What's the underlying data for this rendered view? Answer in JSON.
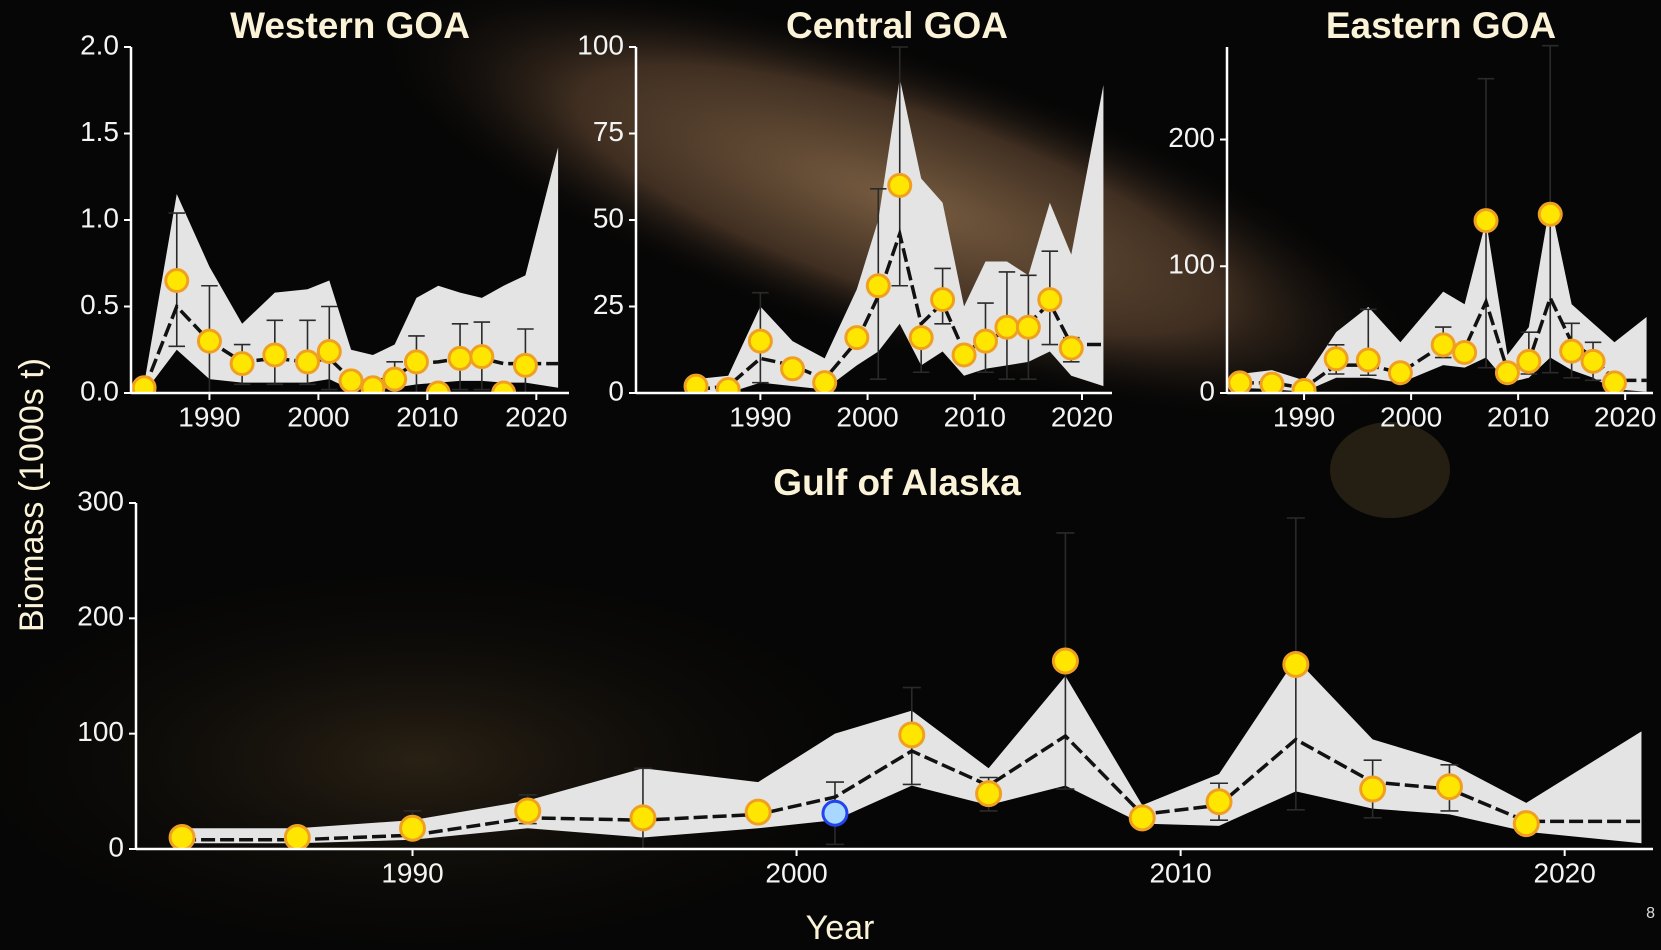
{
  "page_number": "8",
  "chart_data": [
    {
      "type": "line",
      "title": "Western GOA",
      "xlim": [
        1982.8,
        2023
      ],
      "ylim": [
        0,
        2.0
      ],
      "xticks": [
        1990,
        2000,
        2010,
        2020
      ],
      "yticks": [
        {
          "value": 0,
          "label": "0.0"
        },
        0.5,
        {
          "value": 1,
          "label": "1.0"
        },
        1.5,
        {
          "value": 2,
          "label": "2.0"
        }
      ],
      "survey": {
        "color": "#ffe600",
        "x": [
          1984,
          1987,
          1990,
          1993,
          1996,
          1999,
          2001,
          2003,
          2005,
          2007,
          2009,
          2011,
          2013,
          2015,
          2017,
          2019
        ],
        "values": [
          0.03,
          0.65,
          0.3,
          0.17,
          0.22,
          0.18,
          0.24,
          0.07,
          0.03,
          0.08,
          0.18,
          0.0,
          0.2,
          0.21,
          0.0,
          0.16
        ],
        "lower": [
          null,
          0.27,
          0.0,
          0.05,
          0.05,
          0.05,
          0.02,
          null,
          null,
          0.0,
          0.0,
          null,
          0.02,
          0.02,
          null,
          0.0
        ],
        "upper": [
          null,
          1.04,
          0.62,
          0.28,
          0.42,
          0.42,
          0.5,
          null,
          null,
          0.18,
          0.33,
          null,
          0.4,
          0.41,
          null,
          0.37
        ]
      },
      "model": {
        "color": "#111111",
        "band_color": "#e4e4e4",
        "x": [
          1984,
          1987,
          1990,
          1993,
          1996,
          1999,
          2001,
          2003,
          2005,
          2007,
          2009,
          2011,
          2013,
          2015,
          2017,
          2019,
          2022
        ],
        "values": [
          0.02,
          0.5,
          0.3,
          0.18,
          0.2,
          0.18,
          0.2,
          0.08,
          0.06,
          0.1,
          0.17,
          0.18,
          0.2,
          0.2,
          0.17,
          0.17,
          0.17
        ],
        "lower": [
          0.0,
          0.25,
          0.08,
          0.06,
          0.06,
          0.06,
          0.08,
          0.02,
          0.02,
          0.03,
          0.05,
          0.06,
          0.07,
          0.07,
          0.06,
          0.06,
          0.03
        ],
        "upper": [
          0.05,
          1.15,
          0.73,
          0.4,
          0.58,
          0.6,
          0.65,
          0.25,
          0.22,
          0.28,
          0.55,
          0.62,
          0.58,
          0.55,
          0.62,
          0.68,
          1.42
        ]
      }
    },
    {
      "type": "line",
      "title": "Central GOA",
      "xlim": [
        1978.4,
        2022.8
      ],
      "ylim": [
        0,
        100
      ],
      "xticks": [
        1990,
        2000,
        2010,
        2020
      ],
      "yticks": [
        0,
        25,
        50,
        75,
        100
      ],
      "survey": {
        "color": "#ffe600",
        "x": [
          1984,
          1987,
          1990,
          1993,
          1996,
          1999,
          2001,
          2003,
          2005,
          2007,
          2009,
          2011,
          2013,
          2015,
          2017,
          2019
        ],
        "values": [
          2,
          1,
          15,
          7,
          3,
          16,
          31,
          60,
          16,
          27,
          11,
          15,
          19,
          19,
          27,
          13
        ],
        "lower": [
          null,
          null,
          3,
          null,
          null,
          null,
          4,
          31,
          6,
          20,
          null,
          6,
          4,
          4,
          14,
          9
        ],
        "upper": [
          null,
          null,
          29,
          null,
          null,
          null,
          59,
          100,
          17,
          36,
          null,
          26,
          35,
          34,
          41,
          16
        ]
      },
      "model": {
        "color": "#111111",
        "band_color": "#e4e4e4",
        "x": [
          1984,
          1987,
          1990,
          1993,
          1996,
          1999,
          2001,
          2003,
          2005,
          2007,
          2009,
          2011,
          2013,
          2015,
          2017,
          2019,
          2022
        ],
        "values": [
          1,
          2,
          10,
          8,
          4,
          15,
          28,
          46,
          20,
          26,
          12,
          15,
          18,
          20,
          26,
          14,
          14
        ],
        "lower": [
          0,
          0,
          3,
          2,
          1,
          8,
          12,
          20,
          8,
          12,
          5,
          7,
          8,
          9,
          12,
          5,
          2
        ],
        "upper": [
          4,
          5,
          25,
          15,
          10,
          30,
          50,
          91,
          62,
          55,
          25,
          38,
          38,
          34,
          55,
          40,
          89
        ]
      }
    },
    {
      "type": "line",
      "title": "Eastern GOA",
      "xlim": [
        1982.8,
        2022.6
      ],
      "ylim": [
        0,
        273
      ],
      "xticks": [
        1990,
        2000,
        2010,
        2020
      ],
      "yticks": [
        0,
        100,
        200
      ],
      "survey": {
        "color": "#ffe600",
        "x": [
          1984,
          1987,
          1990,
          1993,
          1996,
          1999,
          2003,
          2005,
          2007,
          2009,
          2011,
          2013,
          2015,
          2017,
          2019
        ],
        "values": [
          8,
          7,
          2,
          27,
          26,
          16,
          38,
          32,
          136,
          16,
          25,
          141,
          33,
          25,
          8
        ],
        "lower": [
          null,
          null,
          null,
          15,
          14,
          null,
          28,
          null,
          20,
          null,
          15,
          16,
          12,
          10,
          null
        ],
        "upper": [
          null,
          null,
          null,
          38,
          66,
          null,
          52,
          null,
          248,
          null,
          48,
          274,
          55,
          40,
          null
        ]
      },
      "model": {
        "color": "#111111",
        "band_color": "#e4e4e4",
        "x": [
          1984,
          1987,
          1990,
          1993,
          1996,
          1999,
          2003,
          2005,
          2007,
          2009,
          2011,
          2013,
          2015,
          2017,
          2019,
          2022
        ],
        "values": [
          8,
          8,
          4,
          22,
          22,
          16,
          38,
          35,
          72,
          18,
          25,
          75,
          40,
          28,
          10,
          10
        ],
        "lower": [
          4,
          3,
          1,
          12,
          12,
          8,
          22,
          20,
          28,
          8,
          12,
          28,
          18,
          12,
          3,
          1
        ],
        "upper": [
          15,
          18,
          10,
          48,
          68,
          40,
          80,
          70,
          136,
          30,
          52,
          150,
          70,
          55,
          40,
          60
        ]
      }
    },
    {
      "type": "line",
      "title": "Gulf of Alaska",
      "ylabel": "Biomass (1000s t)",
      "xlabel": "Year",
      "xlim": [
        1982.8,
        2022.3
      ],
      "ylim": [
        0,
        300
      ],
      "xticks": [
        1990,
        2000,
        2010,
        2020
      ],
      "yticks": [
        0,
        100,
        200,
        300
      ],
      "survey": {
        "color": "#ffe600",
        "highlight_x": 2001,
        "highlight_color": "#a8d8ff",
        "x": [
          1984,
          1987,
          1990,
          1993,
          1996,
          1999,
          2001,
          2003,
          2005,
          2007,
          2009,
          2011,
          2013,
          2015,
          2017,
          2019
        ],
        "values": [
          10,
          10,
          18,
          33,
          27,
          32,
          31,
          99,
          48,
          163,
          27,
          41,
          160,
          52,
          54,
          22
        ],
        "lower": [
          6,
          8,
          12,
          22,
          0,
          26,
          4,
          56,
          33,
          52,
          23,
          25,
          34,
          27,
          33,
          17
        ],
        "upper": [
          13,
          12,
          33,
          47,
          70,
          38,
          58,
          140,
          62,
          274,
          35,
          57,
          287,
          77,
          73,
          27
        ]
      },
      "model": {
        "color": "#111111",
        "band_color": "#e4e4e4",
        "x": [
          1984,
          1987,
          1990,
          1993,
          1996,
          1999,
          2001,
          2003,
          2005,
          2007,
          2009,
          2011,
          2013,
          2015,
          2017,
          2019,
          2022
        ],
        "values": [
          8,
          8,
          12,
          27,
          25,
          30,
          45,
          85,
          55,
          98,
          30,
          38,
          95,
          58,
          52,
          24,
          24
        ],
        "lower": [
          5,
          5,
          8,
          18,
          10,
          18,
          25,
          55,
          38,
          55,
          22,
          20,
          50,
          35,
          30,
          15,
          5
        ],
        "upper": [
          18,
          18,
          25,
          42,
          70,
          58,
          100,
          120,
          70,
          150,
          38,
          65,
          165,
          95,
          75,
          40,
          102
        ]
      }
    }
  ]
}
